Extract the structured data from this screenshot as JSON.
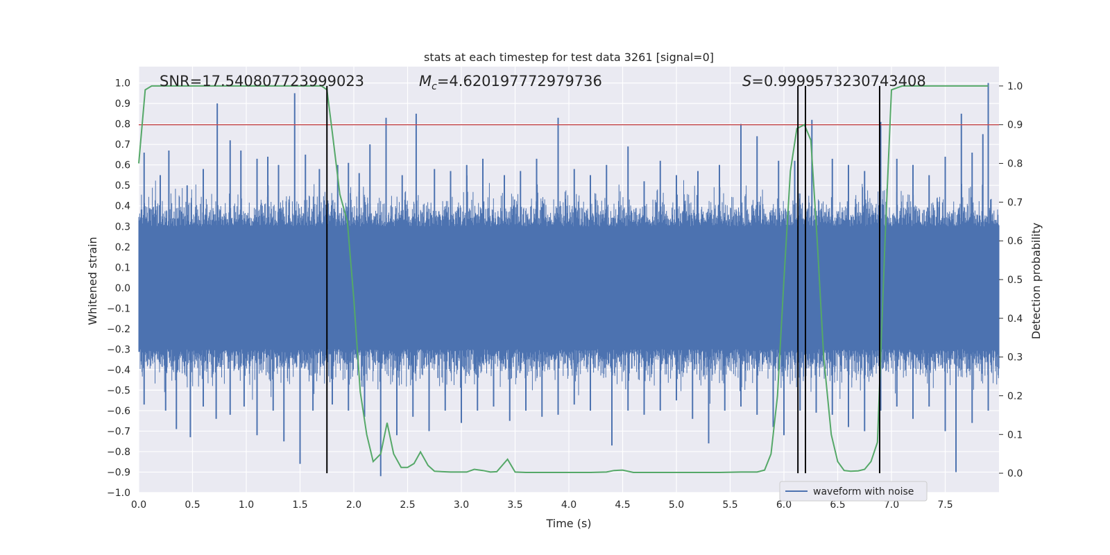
{
  "chart_data": {
    "type": "line",
    "title": "stats at each timestep for test data 3261 [signal=0]",
    "xlabel": "Time (s)",
    "ylabel": "Whitened strain",
    "ylabel_right": "Detection probability",
    "xlim": [
      0.0,
      8.0
    ],
    "ylim": [
      -1.0,
      1.08
    ],
    "ylim_right": [
      -0.05,
      1.05
    ],
    "x_ticks": [
      "0.0",
      "0.5",
      "1.0",
      "1.5",
      "2.0",
      "2.5",
      "3.0",
      "3.5",
      "4.0",
      "4.5",
      "5.0",
      "5.5",
      "6.0",
      "6.5",
      "7.0",
      "7.5"
    ],
    "y_ticks": [
      "−1.0",
      "−0.9",
      "−0.8",
      "−0.7",
      "−0.6",
      "−0.5",
      "−0.4",
      "−0.3",
      "−0.2",
      "−0.1",
      "0.0",
      "0.1",
      "0.2",
      "0.3",
      "0.4",
      "0.5",
      "0.6",
      "0.7",
      "0.8",
      "0.9",
      "1.0"
    ],
    "y_ticks_right": [
      "0.0",
      "0.1",
      "0.2",
      "0.3",
      "0.4",
      "0.5",
      "0.6",
      "0.7",
      "0.8",
      "0.9",
      "1.0"
    ],
    "grid": true,
    "legend_position": "bottom-right",
    "annotations": {
      "snr": "SNR=17.540807723999023",
      "mc_prefix": "M",
      "mc_sub": "c",
      "mc_value": "=4.620197772979736",
      "s_prefix": "S",
      "s_value": "=0.9999573230743408"
    },
    "threshold_line": {
      "axis": "right",
      "value": 0.9,
      "color": "#c44e52"
    },
    "vertical_lines": [
      1.75,
      6.13,
      6.2,
      6.89
    ],
    "series": [
      {
        "name": "waveform with noise",
        "color": "#4c72b0",
        "axis": "left",
        "description": "dense noise waveform",
        "peak_times": [
          0.05,
          0.2,
          0.28,
          0.45,
          0.6,
          0.73,
          0.85,
          0.95,
          1.1,
          1.2,
          1.3,
          1.45,
          1.55,
          1.68,
          1.85,
          1.95,
          2.05,
          2.15,
          2.3,
          2.45,
          2.58,
          2.75,
          2.9,
          3.05,
          3.2,
          3.4,
          3.55,
          3.7,
          3.9,
          4.05,
          4.2,
          4.35,
          4.55,
          4.7,
          4.85,
          5.0,
          5.2,
          5.4,
          5.6,
          5.75,
          5.95,
          6.1,
          6.26,
          6.45,
          6.6,
          6.75,
          6.9,
          7.05,
          7.2,
          7.35,
          7.5,
          7.65,
          7.75,
          7.85,
          7.9
        ],
        "peak_values": [
          0.66,
          0.55,
          0.67,
          0.5,
          0.58,
          0.9,
          0.72,
          0.67,
          0.63,
          0.64,
          0.6,
          0.95,
          0.65,
          0.58,
          0.6,
          0.61,
          0.56,
          0.7,
          0.83,
          0.55,
          0.85,
          0.58,
          0.57,
          0.6,
          0.63,
          0.55,
          0.57,
          0.63,
          0.83,
          0.58,
          0.55,
          0.6,
          0.69,
          0.52,
          0.62,
          0.55,
          0.57,
          0.6,
          0.8,
          0.74,
          0.62,
          0.62,
          0.82,
          0.63,
          0.6,
          0.57,
          0.81,
          0.63,
          0.6,
          0.55,
          0.64,
          0.85,
          0.66,
          0.75,
          1.0
        ],
        "trough_times": [
          0.05,
          0.25,
          0.35,
          0.48,
          0.6,
          0.72,
          0.85,
          0.98,
          1.1,
          1.25,
          1.35,
          1.5,
          1.62,
          1.8,
          1.95,
          2.1,
          2.25,
          2.4,
          2.55,
          2.7,
          2.85,
          3.0,
          3.15,
          3.3,
          3.45,
          3.6,
          3.75,
          3.9,
          4.05,
          4.2,
          4.4,
          4.55,
          4.7,
          4.85,
          5.0,
          5.15,
          5.3,
          5.45,
          5.6,
          5.75,
          5.9,
          6.0,
          6.15,
          6.3,
          6.45,
          6.6,
          6.75,
          6.9,
          7.05,
          7.2,
          7.35,
          7.5,
          7.6,
          7.75,
          7.9
        ],
        "trough_values": [
          -0.57,
          -0.6,
          -0.69,
          -0.73,
          -0.58,
          -0.64,
          -0.62,
          -0.58,
          -0.72,
          -0.6,
          -0.75,
          -0.86,
          -0.6,
          -0.57,
          -0.6,
          -0.63,
          -0.92,
          -0.72,
          -0.63,
          -0.7,
          -0.6,
          -0.66,
          -0.6,
          -0.58,
          -0.65,
          -0.6,
          -0.63,
          -0.62,
          -0.57,
          -0.6,
          -0.77,
          -0.6,
          -0.62,
          -0.6,
          -0.55,
          -0.64,
          -0.76,
          -0.6,
          -0.58,
          -0.62,
          -0.68,
          -0.72,
          -0.6,
          -0.61,
          -0.62,
          -0.68,
          -0.7,
          -0.6,
          -0.58,
          -0.64,
          -0.58,
          -0.7,
          -0.9,
          -0.66,
          -0.6
        ]
      },
      {
        "name": "",
        "color": "#55a868",
        "axis": "right",
        "x": [
          0.0,
          0.06,
          0.12,
          0.2,
          0.3,
          0.5,
          0.8,
          1.0,
          1.3,
          1.55,
          1.65,
          1.7,
          1.75,
          1.8,
          1.87,
          1.94,
          2.0,
          2.06,
          2.12,
          2.18,
          2.25,
          2.31,
          2.37,
          2.44,
          2.5,
          2.56,
          2.62,
          2.69,
          2.75,
          2.9,
          3.05,
          3.12,
          3.2,
          3.27,
          3.33,
          3.43,
          3.5,
          3.6,
          3.8,
          4.0,
          4.2,
          4.35,
          4.42,
          4.5,
          4.6,
          4.8,
          5.0,
          5.2,
          5.4,
          5.6,
          5.75,
          5.82,
          5.88,
          5.94,
          6.0,
          6.06,
          6.12,
          6.19,
          6.25,
          6.31,
          6.37,
          6.44,
          6.5,
          6.56,
          6.62,
          6.69,
          6.75,
          6.81,
          6.87,
          6.94,
          7.0,
          7.1,
          7.3,
          7.6,
          7.9
        ],
        "values": [
          0.8,
          0.99,
          1.0,
          1.0,
          1.0,
          1.0,
          1.0,
          1.0,
          1.0,
          1.0,
          1.0,
          1.0,
          0.99,
          0.88,
          0.72,
          0.65,
          0.45,
          0.21,
          0.1,
          0.03,
          0.05,
          0.13,
          0.05,
          0.015,
          0.015,
          0.025,
          0.055,
          0.02,
          0.005,
          0.003,
          0.003,
          0.01,
          0.007,
          0.003,
          0.004,
          0.036,
          0.003,
          0.002,
          0.002,
          0.002,
          0.002,
          0.003,
          0.007,
          0.008,
          0.002,
          0.002,
          0.002,
          0.002,
          0.002,
          0.003,
          0.003,
          0.008,
          0.05,
          0.2,
          0.5,
          0.78,
          0.89,
          0.9,
          0.86,
          0.6,
          0.3,
          0.1,
          0.03,
          0.007,
          0.005,
          0.006,
          0.01,
          0.03,
          0.08,
          0.6,
          0.99,
          1.0,
          1.0,
          1.0,
          1.0
        ]
      }
    ]
  }
}
